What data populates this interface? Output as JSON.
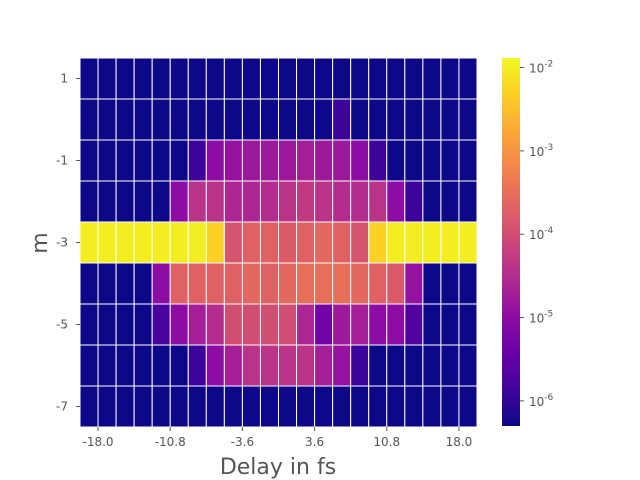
{
  "chart_data": {
    "type": "heatmap",
    "title": "",
    "xlabel": "Delay in fs",
    "ylabel": "m",
    "x_ticks": [
      "-18.0",
      "-10.8",
      "-3.6",
      "3.6",
      "10.8",
      "18.0"
    ],
    "x_tick_values": [
      -18.0,
      -10.8,
      -3.6,
      3.6,
      10.8,
      18.0
    ],
    "xlim": [
      -19.8,
      19.8
    ],
    "y_ticks": [
      "1",
      "-1",
      "-3",
      "-5",
      "-7"
    ],
    "y_tick_values": [
      1,
      -1,
      -3,
      -5,
      -7
    ],
    "ylim": [
      -7.5,
      1.5
    ],
    "x_bin_centers": [
      -18.9,
      -17.1,
      -15.3,
      -13.5,
      -11.7,
      -9.9,
      -8.1,
      -6.3,
      -4.5,
      -2.7,
      -0.9,
      0.9,
      2.7,
      4.5,
      6.3,
      8.1,
      9.9,
      11.7,
      13.5,
      15.3,
      17.1,
      18.9
    ],
    "y_values": [
      1,
      0,
      -1,
      -2,
      -3,
      -4,
      -5,
      -6,
      -7
    ],
    "colormap": "plasma",
    "colorscale": "log",
    "color_range": [
      5e-07,
      0.013
    ],
    "colorbar_ticks": [
      "10",
      "10",
      "10",
      "10",
      "10"
    ],
    "colorbar_tick_exponents": [
      "-2",
      "-3",
      "-4",
      "-5",
      "-6"
    ],
    "colorbar_tick_values": [
      0.01,
      0.001,
      0.0001,
      1e-05,
      1e-06
    ],
    "z_log10": [
      [
        -6.3,
        -6.3,
        -6.3,
        -6.3,
        -6.3,
        -6.3,
        -6.3,
        -6.3,
        -6.3,
        -6.3,
        -6.3,
        -6.3,
        -6.3,
        -6.3,
        -6.3,
        -6.3,
        -6.3,
        -6.3,
        -6.3,
        -6.3,
        -6.3,
        -6.3
      ],
      [
        -6.3,
        -6.3,
        -6.3,
        -6.3,
        -6.3,
        -6.3,
        -6.3,
        -6.3,
        -6.3,
        -6.3,
        -6.3,
        -6.3,
        -6.3,
        -6.3,
        -5.9,
        -6.3,
        -6.3,
        -6.3,
        -6.3,
        -6.3,
        -6.3,
        -6.3
      ],
      [
        -6.3,
        -6.3,
        -6.3,
        -6.3,
        -6.3,
        -6.3,
        -5.9,
        -5.0,
        -4.9,
        -4.8,
        -4.8,
        -4.8,
        -4.7,
        -4.8,
        -4.8,
        -5.0,
        -5.9,
        -6.3,
        -6.3,
        -6.3,
        -6.3,
        -6.3
      ],
      [
        -6.3,
        -6.3,
        -6.3,
        -6.3,
        -6.3,
        -5.0,
        -4.4,
        -4.4,
        -4.6,
        -4.6,
        -4.5,
        -4.4,
        -4.3,
        -4.4,
        -4.5,
        -4.5,
        -4.4,
        -5.0,
        -5.9,
        -6.3,
        -6.3,
        -6.3
      ],
      [
        -2.0,
        -2.0,
        -2.0,
        -2.0,
        -2.0,
        -2.0,
        -2.0,
        -2.3,
        -3.9,
        -3.7,
        -3.7,
        -3.8,
        -3.7,
        -3.6,
        -3.7,
        -3.9,
        -2.3,
        -2.0,
        -2.0,
        -2.0,
        -2.0,
        -2.0
      ],
      [
        -6.3,
        -6.3,
        -6.3,
        -6.3,
        -5.0,
        -3.7,
        -3.7,
        -3.7,
        -3.7,
        -3.6,
        -3.7,
        -3.6,
        -3.5,
        -3.5,
        -3.5,
        -3.6,
        -3.7,
        -3.8,
        -4.9,
        -6.3,
        -6.3,
        -6.3
      ],
      [
        -6.3,
        -6.3,
        -6.3,
        -6.3,
        -5.8,
        -5.0,
        -4.7,
        -4.5,
        -4.0,
        -4.0,
        -4.0,
        -4.0,
        -4.6,
        -5.3,
        -4.8,
        -4.7,
        -5.0,
        -5.0,
        -5.7,
        -6.3,
        -6.3,
        -6.3
      ],
      [
        -6.3,
        -6.3,
        -6.3,
        -6.3,
        -6.3,
        -6.3,
        -5.9,
        -5.0,
        -4.7,
        -4.4,
        -4.4,
        -4.4,
        -4.4,
        -4.7,
        -4.9,
        -5.9,
        -6.3,
        -6.3,
        -6.3,
        -6.3,
        -6.3,
        -6.3
      ],
      [
        -6.3,
        -6.3,
        -6.3,
        -6.3,
        -6.3,
        -6.3,
        -6.3,
        -6.3,
        -6.3,
        -6.3,
        -6.3,
        -6.3,
        -6.3,
        -6.3,
        -6.3,
        -6.3,
        -6.3,
        -6.3,
        -6.3,
        -6.3,
        -6.3,
        -6.3
      ]
    ]
  }
}
